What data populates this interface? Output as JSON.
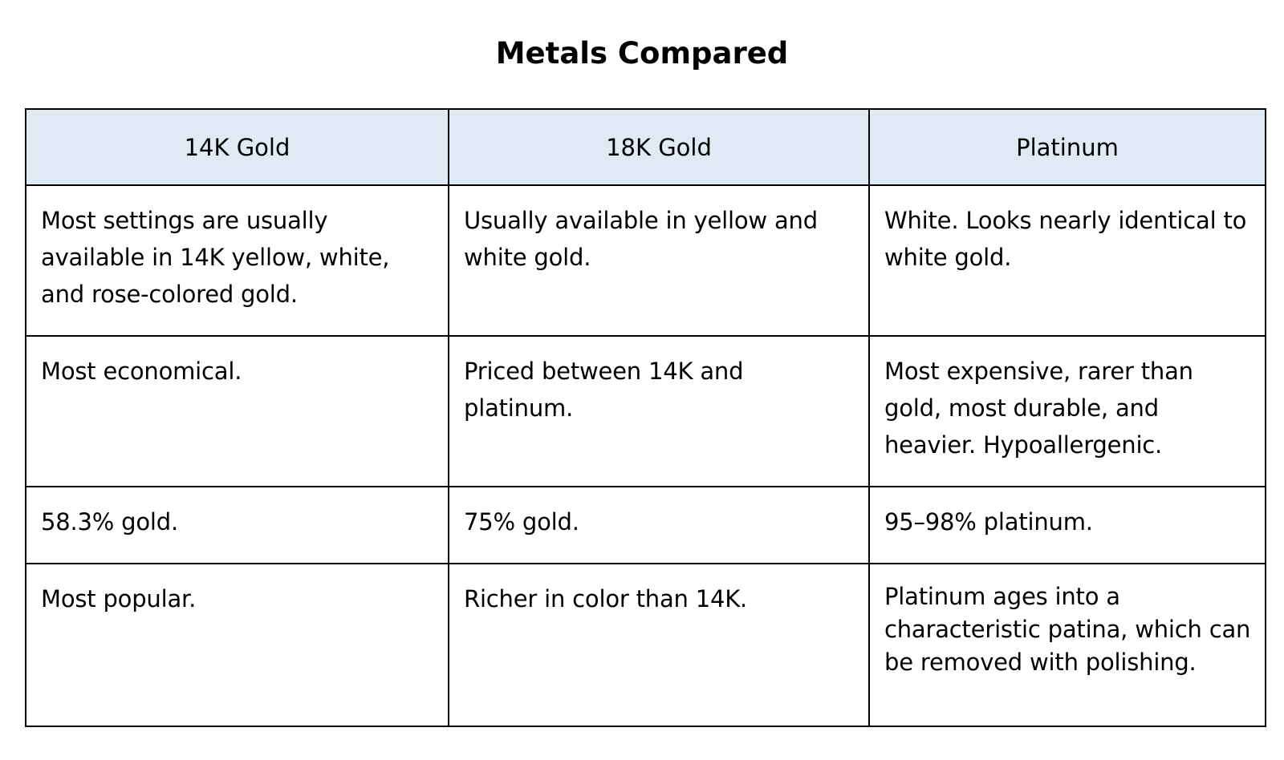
{
  "title": "Metals Compared",
  "table": {
    "headers": [
      "14K Gold",
      "18K Gold",
      "Platinum"
    ],
    "rows": [
      [
        "Most settings are usually available in 14K yellow, white, and rose-colored gold.",
        "Usually available in yellow and white gold.",
        "White. Looks nearly identical to white gold."
      ],
      [
        "Most economical.",
        "Priced between 14K and platinum.",
        "Most expensive, rarer than gold, most durable, and heavier. Hypoallergenic."
      ],
      [
        "58.3% gold.",
        "75% gold.",
        "95–98% platinum."
      ],
      [
        "Most popular.",
        "Richer in color than 14K.",
        "Platinum ages into a characteristic patina, which can be removed with polishing."
      ]
    ]
  }
}
